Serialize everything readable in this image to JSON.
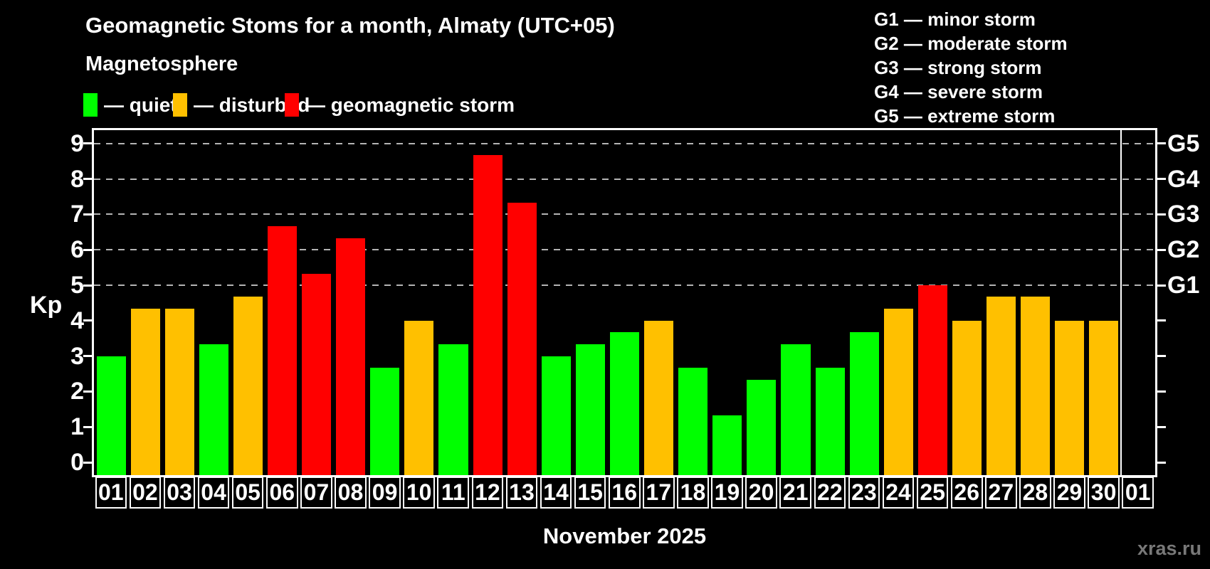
{
  "title": "Geomagnetic Stoms for a month, Almaty (UTC+05)",
  "subtitle": "Magnetosphere",
  "legend": {
    "quiet": {
      "label": "— quiet",
      "color": "#00ff00"
    },
    "disturbed": {
      "label": "— disturbed",
      "color": "#ffc000"
    },
    "storm": {
      "label": "— geomagnetic storm",
      "color": "#ff0000"
    }
  },
  "g_legend": [
    "G1 — minor storm",
    "G2 — moderate storm",
    "G3 — strong storm",
    "G4 — severe storm",
    "G5 — extreme storm"
  ],
  "chart_data": {
    "type": "bar",
    "title": "Geomagnetic Stoms for a month, Almaty (UTC+05)",
    "ylabel": "Kp",
    "xlabel": "November 2025",
    "ylim": [
      0,
      9
    ],
    "grid": true,
    "gridlines_at": [
      5,
      6,
      7,
      8,
      9
    ],
    "y_ticks": [
      0,
      1,
      2,
      3,
      4,
      5,
      6,
      7,
      8,
      9
    ],
    "right_axis": [
      {
        "kp": 9,
        "label": "G5"
      },
      {
        "kp": 8,
        "label": "G4"
      },
      {
        "kp": 7,
        "label": "G3"
      },
      {
        "kp": 6,
        "label": "G2"
      },
      {
        "kp": 5,
        "label": "G1"
      }
    ],
    "categories": [
      "01",
      "02",
      "03",
      "04",
      "05",
      "06",
      "07",
      "08",
      "09",
      "10",
      "11",
      "12",
      "13",
      "14",
      "15",
      "16",
      "17",
      "18",
      "19",
      "20",
      "21",
      "22",
      "23",
      "24",
      "25",
      "26",
      "27",
      "28",
      "29",
      "30",
      "01"
    ],
    "values": [
      3.0,
      4.33,
      4.33,
      3.33,
      4.67,
      6.67,
      5.33,
      6.33,
      2.67,
      4.0,
      3.33,
      8.67,
      7.33,
      3.0,
      3.33,
      3.67,
      4.0,
      2.67,
      1.33,
      2.33,
      3.33,
      2.67,
      3.67,
      4.33,
      5.0,
      4.0,
      4.67,
      4.67,
      4.0,
      4.0,
      null
    ],
    "statuses": [
      "quiet",
      "disturbed",
      "disturbed",
      "quiet",
      "disturbed",
      "storm",
      "storm",
      "storm",
      "quiet",
      "disturbed",
      "quiet",
      "storm",
      "storm",
      "quiet",
      "quiet",
      "quiet",
      "disturbed",
      "quiet",
      "quiet",
      "quiet",
      "quiet",
      "quiet",
      "quiet",
      "disturbed",
      "storm",
      "disturbed",
      "disturbed",
      "disturbed",
      "disturbed",
      "disturbed",
      null
    ],
    "legend_position": "top"
  },
  "watermark": "xras.ru"
}
